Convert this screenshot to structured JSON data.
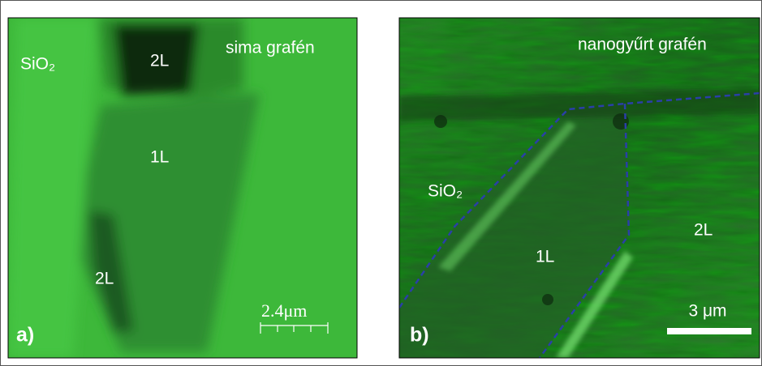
{
  "panel_a": {
    "label": "a)",
    "annotations": [
      "SiO₂",
      "2L",
      "sima grafén",
      "1L",
      "2L"
    ],
    "scale_bar": "2.4μm"
  },
  "panel_b": {
    "label": "b)",
    "annotations": [
      "nanogyűrt grafén",
      "SiO₂",
      "1L",
      "2L"
    ],
    "scale_bar": "3 μm"
  }
}
